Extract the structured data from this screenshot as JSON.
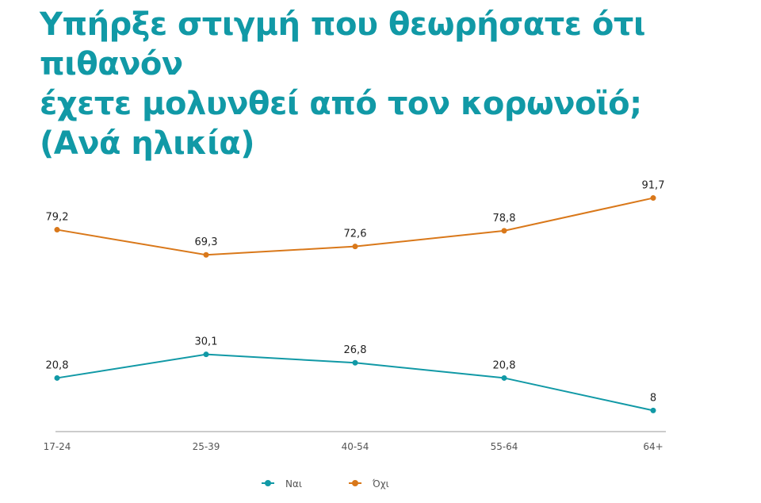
{
  "title_lines": [
    "Υπήρξε στιγμή που θεωρήσατε ότι πιθανόν",
    "έχετε μολυνθεί από τον κορωνοϊό;",
    "(Ανά ηλικία)"
  ],
  "chart_data": {
    "type": "line",
    "title": "Υπήρξε στιγμή που θεωρήσατε ότι πιθανόν έχετε μολυνθεί από τον κορωνοϊό; (Ανά ηλικία)",
    "categories": [
      "17-24",
      "25-39",
      "40-54",
      "55-64",
      "64+"
    ],
    "series": [
      {
        "name": "Ναι",
        "values": [
          20.8,
          30.1,
          26.8,
          20.8,
          8
        ],
        "labels": [
          "20,8",
          "30,1",
          "26,8",
          "20,8",
          "8"
        ],
        "color": "#1199a6"
      },
      {
        "name": "Όχι",
        "values": [
          79.2,
          69.3,
          72.6,
          78.8,
          91.7
        ],
        "labels": [
          "79,2",
          "69,3",
          "72,6",
          "78,8",
          "91,7"
        ],
        "color": "#d9781a"
      }
    ],
    "ylim": [
      0,
      100
    ],
    "grid": false,
    "legend": "bottom",
    "data_labels": true
  }
}
